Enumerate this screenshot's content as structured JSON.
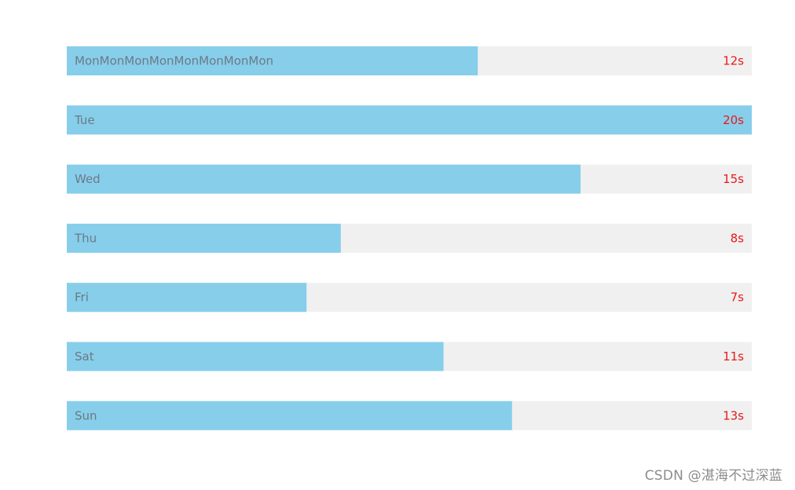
{
  "chart_data": {
    "type": "bar",
    "orientation": "horizontal",
    "categories": [
      "MonMonMonMonMonMonMonMon",
      "Tue",
      "Wed",
      "Thu",
      "Fri",
      "Sat",
      "Sun"
    ],
    "values": [
      12,
      20,
      15,
      8,
      7,
      11,
      13
    ],
    "value_labels": [
      "12s",
      "20s",
      "15s",
      "8s",
      "7s",
      "11s",
      "13s"
    ],
    "xlim": [
      0,
      20
    ],
    "grid": false,
    "legend": "none"
  },
  "colors": {
    "bar": "#87ceeb",
    "track": "#f0f0f0",
    "category_text": "#6b7a85",
    "value_text": "#e8191a",
    "background": "#ffffff"
  },
  "watermark": "CSDN @湛海不过深蓝"
}
